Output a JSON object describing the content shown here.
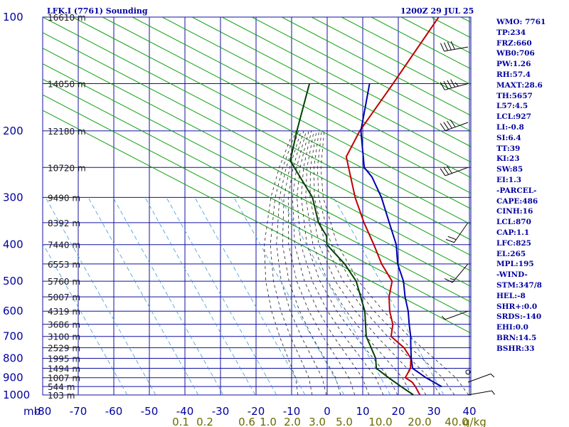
{
  "header": {
    "station": "LFK.I (7761) Sounding",
    "time": "1200Z 29 JUL 25"
  },
  "indices": [
    "WMO: 7761",
    "TP:234",
    "FRZ:660",
    "WB0:706",
    "PW:1.26",
    "RH:57.4",
    "MAXT:28.6",
    "TH:5657",
    "L57:4.5",
    "LCL:927",
    "LI:-0.8",
    "SI:6.4",
    "TT:39",
    "KI:23",
    "SW:85",
    "EI:1.3",
    "-PARCEL-",
    "CAPE:486",
    "CINH:16",
    "LCL:870",
    "CAP:1.1",
    "LFC:825",
    "EL:265",
    "MPL:195",
    "-WIND-",
    "STM:347/8",
    "HEL:-8",
    "SHR+:0.0",
    "SRDS:-140",
    "EHI:0.0",
    "BRN:14.5",
    "BSHR:33"
  ],
  "colors": {
    "grid": "#1010a0",
    "dry_adiabat": "#10a010",
    "moist_adiabat": "#202020",
    "mixing_ratio": "#3a9ad9",
    "temperature": "#c00000",
    "dewpoint": "#004000",
    "parcel": "#0000b0",
    "text": "#0000a0",
    "mix_label": "#6b6b00"
  },
  "chart_data": {
    "type": "skew-t",
    "y_axis": {
      "label": "mb",
      "scale": "log",
      "range": [
        1000,
        100
      ],
      "ticks": [
        100,
        200,
        300,
        400,
        500,
        600,
        700,
        800,
        900,
        1000
      ]
    },
    "x_axis": {
      "range": [
        -80,
        40
      ],
      "ticks": [
        -80,
        -70,
        -60,
        -50,
        -40,
        -30,
        -20,
        -10,
        0,
        10,
        20,
        30,
        40
      ],
      "tick_labels": [
        "-80",
        "-70",
        "-60",
        "-50",
        "-40",
        "-30",
        "-20",
        "-10",
        "0",
        "10",
        "20",
        "30",
        "40"
      ]
    },
    "mixing_ratio_axis": {
      "unit": "g/kg",
      "labels": [
        "0.1",
        "0.2",
        "0.6",
        "1.0",
        "2.0",
        "3.0",
        "5.0",
        "10.0",
        "20.0",
        "40.0"
      ],
      "values": [
        0.1,
        0.2,
        0.6,
        1.0,
        2.0,
        3.0,
        5.0,
        10.0,
        20.0,
        40.0
      ],
      "unit_label": "g/kg"
    },
    "height_labels": [
      {
        "p": 100,
        "label": "16610 m"
      },
      {
        "p": 150,
        "label": "14050 m"
      },
      {
        "p": 200,
        "label": "12180 m"
      },
      {
        "p": 250,
        "label": "10720 m"
      },
      {
        "p": 300,
        "label": "9490 m"
      },
      {
        "p": 350,
        "label": "8392 m"
      },
      {
        "p": 400,
        "label": "7440 m"
      },
      {
        "p": 450,
        "label": "6553 m"
      },
      {
        "p": 500,
        "label": "5760 m"
      },
      {
        "p": 550,
        "label": "5007 m"
      },
      {
        "p": 600,
        "label": "4319 m"
      },
      {
        "p": 650,
        "label": "3686 m"
      },
      {
        "p": 700,
        "label": "3100 m"
      },
      {
        "p": 750,
        "label": "2529 m"
      },
      {
        "p": 800,
        "label": "1995 m"
      },
      {
        "p": 850,
        "label": "1494 m"
      },
      {
        "p": 900,
        "label": "1007 m"
      },
      {
        "p": 950,
        "label": "544 m"
      },
      {
        "p": 1000,
        "label": "103 m"
      }
    ],
    "series": [
      {
        "key": "temperature",
        "points": [
          [
            1000,
            22.3
          ],
          [
            950,
            18.9
          ],
          [
            925,
            16.9
          ],
          [
            900,
            13.8
          ],
          [
            850,
            12.9
          ],
          [
            800,
            10.5
          ],
          [
            750,
            5.9
          ],
          [
            700,
            -0.6
          ],
          [
            650,
            -3.2
          ],
          [
            600,
            -7.4
          ],
          [
            550,
            -11.2
          ],
          [
            500,
            -14.3
          ],
          [
            450,
            -21.6
          ],
          [
            400,
            -28.7
          ],
          [
            350,
            -37.0
          ],
          [
            300,
            -45.9
          ],
          [
            250,
            -55.3
          ],
          [
            234,
            -58.7
          ],
          [
            200,
            -61.4
          ],
          [
            150,
            -64.0
          ],
          [
            100,
            -68.0
          ]
        ]
      },
      {
        "key": "dewpoint",
        "points": [
          [
            1000,
            20.5
          ],
          [
            950,
            14.9
          ],
          [
            900,
            9.1
          ],
          [
            850,
            3.3
          ],
          [
            800,
            0.6
          ],
          [
            700,
            -7.6
          ],
          [
            600,
            -14.4
          ],
          [
            500,
            -24.4
          ],
          [
            450,
            -32.0
          ],
          [
            400,
            -41.9
          ],
          [
            380,
            -44.1
          ],
          [
            350,
            -49.8
          ],
          [
            300,
            -57.9
          ],
          [
            240,
            -73.4
          ],
          [
            200,
            -79.1
          ],
          [
            150,
            -87.5
          ]
        ]
      },
      {
        "key": "parcel",
        "points": [
          [
            950,
            26.3
          ],
          [
            900,
            19.6
          ],
          [
            850,
            13.5
          ],
          [
            800,
            10.6
          ],
          [
            750,
            7.8
          ],
          [
            700,
            4.9
          ],
          [
            650,
            1.4
          ],
          [
            600,
            -2.2
          ],
          [
            550,
            -6.7
          ],
          [
            500,
            -11.1
          ],
          [
            450,
            -17.1
          ],
          [
            400,
            -22.4
          ],
          [
            350,
            -29.9
          ],
          [
            300,
            -38.5
          ],
          [
            265,
            -46.3
          ],
          [
            250,
            -50.9
          ],
          [
            200,
            -61.1
          ],
          [
            150,
            -70.6
          ]
        ]
      }
    ],
    "wind_barbs": [
      {
        "p": 120,
        "dir": 260,
        "speed": 40
      },
      {
        "p": 150,
        "dir": 255,
        "speed": 45
      },
      {
        "p": 190,
        "dir": 250,
        "speed": 40
      },
      {
        "p": 250,
        "dir": 250,
        "speed": 30
      },
      {
        "p": 350,
        "dir": 215,
        "speed": 20
      },
      {
        "p": 450,
        "dir": 220,
        "speed": 15
      },
      {
        "p": 600,
        "dir": 250,
        "speed": 5
      },
      {
        "p": 870,
        "dir": 0,
        "speed": 0
      },
      {
        "p": 925,
        "dir": 70,
        "speed": 5
      },
      {
        "p": 1000,
        "dir": 80,
        "speed": 5
      }
    ]
  }
}
